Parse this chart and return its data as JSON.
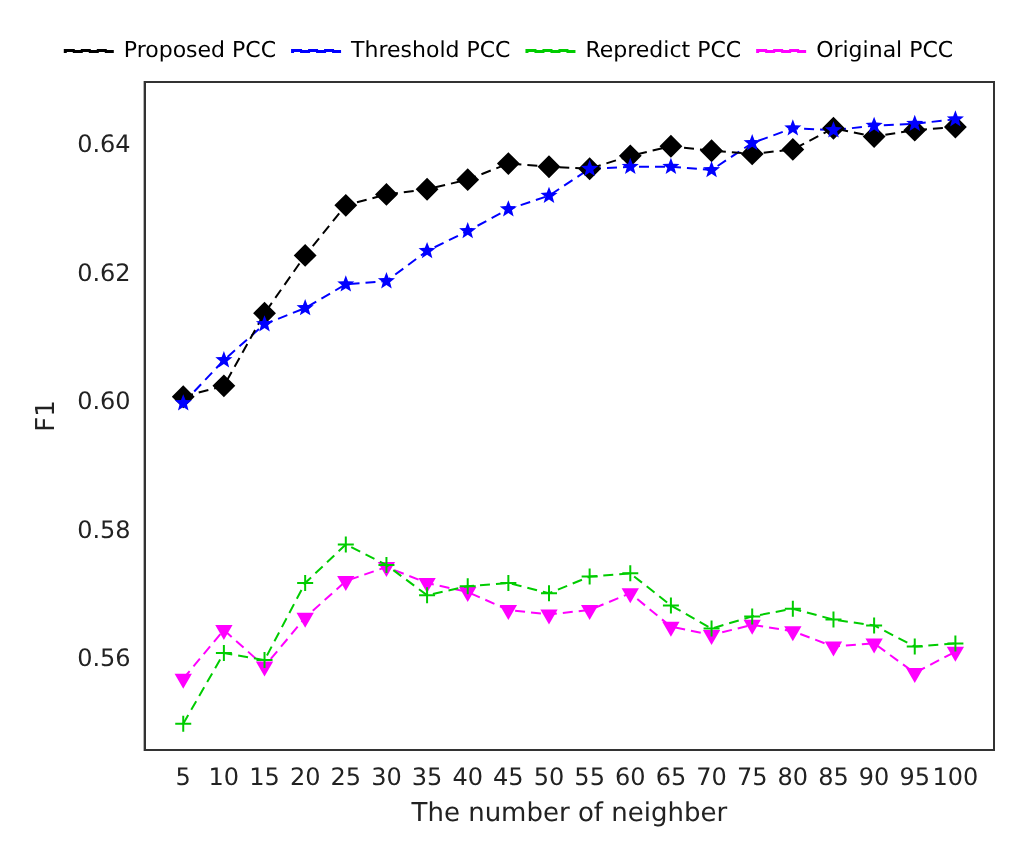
{
  "chart_data": {
    "type": "line",
    "xlabel": "The number of neighber",
    "ylabel": "F1",
    "x": [
      5,
      10,
      15,
      20,
      25,
      30,
      35,
      40,
      45,
      50,
      55,
      60,
      65,
      70,
      75,
      80,
      85,
      90,
      95,
      100
    ],
    "series": [
      {
        "name": "Proposed PCC",
        "color": "#000000",
        "marker": "diamond",
        "values": [
          0.601,
          0.6027,
          0.614,
          0.623,
          0.6308,
          0.6325,
          0.6333,
          0.6348,
          0.6373,
          0.6368,
          0.6365,
          0.6385,
          0.64,
          0.6393,
          0.6388,
          0.6395,
          0.6428,
          0.6415,
          0.6425,
          0.643
        ]
      },
      {
        "name": "Threshold PCC",
        "color": "#0000ff",
        "marker": "star",
        "values": [
          0.6,
          0.6067,
          0.6123,
          0.6148,
          0.6185,
          0.619,
          0.6237,
          0.6268,
          0.6302,
          0.6323,
          0.6365,
          0.6368,
          0.6368,
          0.6363,
          0.6405,
          0.6428,
          0.6425,
          0.6432,
          0.6435,
          0.6442
        ]
      },
      {
        "name": "Repredict PCC",
        "color": "#00cc00",
        "marker": "cross",
        "values": [
          0.5501,
          0.5611,
          0.56,
          0.572,
          0.578,
          0.5748,
          0.5701,
          0.5715,
          0.572,
          0.5704,
          0.573,
          0.5735,
          0.5685,
          0.5649,
          0.5668,
          0.568,
          0.5663,
          0.5654,
          0.5621,
          0.5626
        ]
      },
      {
        "name": "Original PCC",
        "color": "#ff00ff",
        "marker": "triangle-down",
        "values": [
          0.5571,
          0.5647,
          0.559,
          0.5666,
          0.5723,
          0.5745,
          0.572,
          0.5706,
          0.5678,
          0.5671,
          0.5678,
          0.5704,
          0.5652,
          0.5639,
          0.5655,
          0.5645,
          0.5621,
          0.5626,
          0.558,
          0.5613
        ]
      }
    ],
    "xlim": [
      0.25,
      104.75
    ],
    "xticks": [
      5,
      10,
      15,
      20,
      25,
      30,
      35,
      40,
      45,
      50,
      55,
      60,
      65,
      70,
      75,
      80,
      85,
      90,
      95,
      100
    ],
    "ylim": [
      0.546,
      0.65
    ],
    "yticks": [
      {
        "value": 0.56,
        "label": "0.56"
      },
      {
        "value": 0.58,
        "label": "0.58"
      },
      {
        "value": 0.6,
        "label": "0.60"
      },
      {
        "value": 0.62,
        "label": "0.62"
      },
      {
        "value": 0.64,
        "label": "0.64"
      }
    ],
    "grid": false,
    "legend": "top",
    "line_style": "dashed"
  }
}
